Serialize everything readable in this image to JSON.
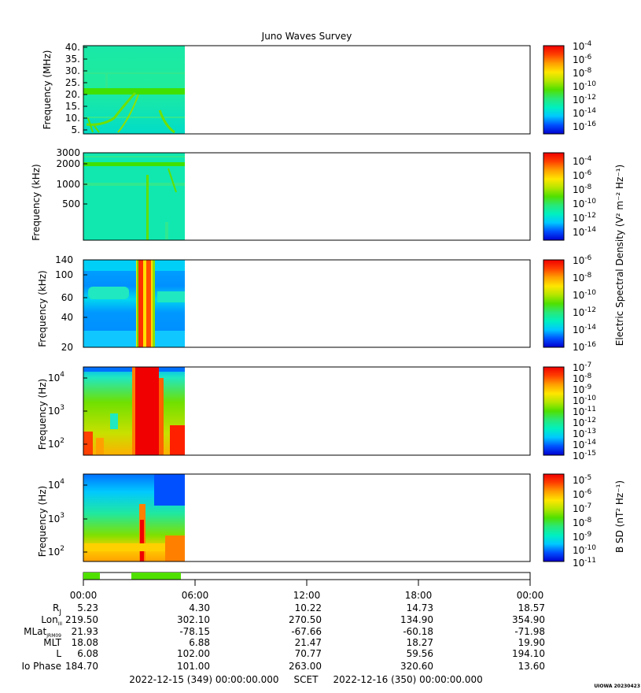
{
  "title": "Juno Waves Survey",
  "colors": {
    "colormap": [
      "#0000d0",
      "#0050ff",
      "#00c8ff",
      "#00f0c0",
      "#28e878",
      "#50e000",
      "#b4e600",
      "#ffe600",
      "#ffa000",
      "#ff4000",
      "#f00000"
    ]
  },
  "panels": [
    {
      "ylabel": "Frequency (MHz)",
      "yticks": [
        "40.",
        "35.",
        "30.",
        "25.",
        "20.",
        "15.",
        "10.",
        "5."
      ],
      "cbar_ticks": [
        {
          "base": "10",
          "exp": "-4"
        },
        {
          "base": "10",
          "exp": "-6"
        },
        {
          "base": "10",
          "exp": "-8"
        },
        {
          "base": "10",
          "exp": "-10"
        },
        {
          "base": "10",
          "exp": "-12"
        },
        {
          "base": "10",
          "exp": "-14"
        },
        {
          "base": "10",
          "exp": "-16"
        }
      ]
    },
    {
      "ylabel": "Frequency (kHz)",
      "yticks": [
        "3000",
        "2000",
        "1000",
        "500"
      ],
      "cbar_ticks": [
        {
          "base": "10",
          "exp": "-4"
        },
        {
          "base": "10",
          "exp": "-6"
        },
        {
          "base": "10",
          "exp": "-8"
        },
        {
          "base": "10",
          "exp": "-10"
        },
        {
          "base": "10",
          "exp": "-12"
        },
        {
          "base": "10",
          "exp": "-14"
        }
      ]
    },
    {
      "ylabel": "Frequency (kHz)",
      "yticks": [
        "140",
        "100",
        "60",
        "40",
        "20"
      ],
      "cbar_ticks": [
        {
          "base": "10",
          "exp": "-6"
        },
        {
          "base": "10",
          "exp": "-8"
        },
        {
          "base": "10",
          "exp": "-10"
        },
        {
          "base": "10",
          "exp": "-12"
        },
        {
          "base": "10",
          "exp": "-14"
        },
        {
          "base": "10",
          "exp": "-16"
        }
      ]
    },
    {
      "ylabel": "Frequency (Hz)",
      "yticks": [
        {
          "base": "10",
          "exp": "4"
        },
        {
          "base": "10",
          "exp": "3"
        },
        {
          "base": "10",
          "exp": "2"
        }
      ],
      "cbar_ticks": [
        {
          "base": "10",
          "exp": "-7"
        },
        {
          "base": "10",
          "exp": "-8"
        },
        {
          "base": "10",
          "exp": "-9"
        },
        {
          "base": "10",
          "exp": "-10"
        },
        {
          "base": "10",
          "exp": "-11"
        },
        {
          "base": "10",
          "exp": "-12"
        },
        {
          "base": "10",
          "exp": "-13"
        },
        {
          "base": "10",
          "exp": "-14"
        },
        {
          "base": "10",
          "exp": "-15"
        }
      ]
    },
    {
      "ylabel": "Frequency (Hz)",
      "yticks": [
        {
          "base": "10",
          "exp": "4"
        },
        {
          "base": "10",
          "exp": "3"
        },
        {
          "base": "10",
          "exp": "2"
        }
      ],
      "cbar_ticks": [
        {
          "base": "10",
          "exp": "-5"
        },
        {
          "base": "10",
          "exp": "-6"
        },
        {
          "base": "10",
          "exp": "-7"
        },
        {
          "base": "10",
          "exp": "-8"
        },
        {
          "base": "10",
          "exp": "-9"
        },
        {
          "base": "10",
          "exp": "-10"
        },
        {
          "base": "10",
          "exp": "-11"
        }
      ]
    }
  ],
  "cbar_labels": {
    "electric": "Electric Spectral Density (V² m⁻² Hz⁻¹)",
    "magnetic": "B SD (nT² Hz⁻¹)"
  },
  "time_ticks": [
    "00:00",
    "06:00",
    "12:00",
    "18:00",
    "00:00"
  ],
  "ephemeris": [
    {
      "label": "R",
      "sub": "J",
      "values": [
        "5.23",
        "4.30",
        "10.22",
        "14.73",
        "18.57"
      ]
    },
    {
      "label": "Lon",
      "sub": "III",
      "values": [
        "219.50",
        "302.10",
        "270.50",
        "134.90",
        "354.90"
      ]
    },
    {
      "label": "MLat",
      "sub": "JRM09",
      "values": [
        "21.93",
        "-78.15",
        "-67.66",
        "-60.18",
        "-71.98"
      ]
    },
    {
      "label": "MLT",
      "sub": "",
      "values": [
        "18.08",
        "6.88",
        "21.47",
        "18.27",
        "19.90"
      ]
    },
    {
      "label": "L",
      "sub": "",
      "values": [
        "6.08",
        "102.00",
        "70.77",
        "59.56",
        "194.10"
      ]
    },
    {
      "label": "Io Phase",
      "sub": "",
      "values": [
        "184.70",
        "101.00",
        "263.00",
        "320.60",
        "13.60"
      ]
    }
  ],
  "footer": "2022-12-15 (349) 00:00:00.000     SCET     2022-12-16 (350) 00:00:00.000",
  "credit": "UIOWA 20230423",
  "chart_data": {
    "type": "heatmap",
    "title": "Juno Waves Survey",
    "x_axis": {
      "range": [
        "2022-12-15 00:00",
        "2022-12-16 00:00"
      ],
      "ticks": [
        "00:00",
        "06:00",
        "12:00",
        "18:00",
        "00:00"
      ]
    },
    "data_coverage": {
      "start": "00:00",
      "end": "05:30"
    },
    "mode_bar_segments": [
      [
        "00:00",
        "00:55"
      ],
      [
        "02:35",
        "05:20"
      ]
    ],
    "panels": [
      {
        "ylabel": "Frequency (MHz)",
        "ylim": [
          3.5,
          41
        ],
        "scale": "linear",
        "cbar_range": [
          "1e-17",
          "1e-4"
        ]
      },
      {
        "ylabel": "Frequency (kHz)",
        "ylim": [
          100,
          3000
        ],
        "scale": "log",
        "cbar_range": [
          "1e-15",
          "1e-3"
        ]
      },
      {
        "ylabel": "Frequency (kHz)",
        "ylim": [
          20,
          140
        ],
        "scale": "log",
        "cbar_range": [
          "1e-17",
          "1e-6"
        ]
      },
      {
        "ylabel": "Frequency (Hz)",
        "ylim": [
          50,
          20000
        ],
        "scale": "log",
        "cbar_range": [
          "1e-15",
          "1e-7"
        ]
      },
      {
        "ylabel": "Frequency (Hz)",
        "ylim": [
          50,
          20000
        ],
        "scale": "log",
        "cbar_range": [
          "1e-11",
          "1e-4"
        ]
      }
    ]
  }
}
